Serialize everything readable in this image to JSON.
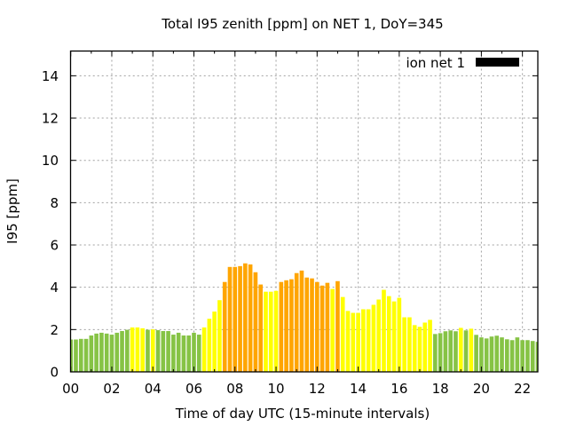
{
  "chart_data": {
    "type": "bar",
    "title": "Total I95 zenith [ppm] on NET 1, DoY=345",
    "xlabel": "Time of day UTC (15-minute intervals)",
    "ylabel": "I95 [ppm]",
    "xlim": [
      0,
      91
    ],
    "ylim": [
      0,
      15.17
    ],
    "grid": true,
    "x_ticks": [
      {
        "index": 0,
        "label": "00"
      },
      {
        "index": 8,
        "label": "02"
      },
      {
        "index": 16,
        "label": "04"
      },
      {
        "index": 24,
        "label": "06"
      },
      {
        "index": 32,
        "label": "08"
      },
      {
        "index": 40,
        "label": "10"
      },
      {
        "index": 48,
        "label": "12"
      },
      {
        "index": 56,
        "label": "14"
      },
      {
        "index": 64,
        "label": "16"
      },
      {
        "index": 72,
        "label": "18"
      },
      {
        "index": 80,
        "label": "20"
      },
      {
        "index": 88,
        "label": "22"
      }
    ],
    "y_ticks": [
      {
        "value": 0,
        "label": "0"
      },
      {
        "value": 2,
        "label": "2"
      },
      {
        "value": 4,
        "label": "4"
      },
      {
        "value": 6,
        "label": "6"
      },
      {
        "value": 8,
        "label": "8"
      },
      {
        "value": 10,
        "label": "10"
      },
      {
        "value": 12,
        "label": "12"
      },
      {
        "value": 14,
        "label": "14"
      }
    ],
    "legend": {
      "placement": "top-right",
      "entries": [
        {
          "label": "ion net 1",
          "color": "#000000"
        }
      ]
    },
    "color_thresholds": [
      {
        "below": 2,
        "color": "#86c345",
        "name": "low"
      },
      {
        "below": 4,
        "color": "#ffff00",
        "name": "medium"
      },
      {
        "below": 999,
        "color": "#ffa500",
        "name": "high"
      }
    ],
    "series": [
      {
        "name": "ion net 1",
        "x": [
          0,
          1,
          2,
          3,
          4,
          5,
          6,
          7,
          8,
          9,
          10,
          11,
          12,
          13,
          14,
          15,
          16,
          17,
          18,
          19,
          20,
          21,
          22,
          23,
          24,
          25,
          26,
          27,
          28,
          29,
          30,
          31,
          32,
          33,
          34,
          35,
          36,
          37,
          38,
          39,
          40,
          41,
          42,
          43,
          44,
          45,
          46,
          47,
          48,
          49,
          50,
          51,
          52,
          53,
          54,
          55,
          56,
          57,
          58,
          59,
          60,
          61,
          62,
          63,
          64,
          65,
          66,
          67,
          68,
          69,
          70,
          71,
          72,
          73,
          74,
          75,
          76,
          77,
          78,
          79,
          80,
          81,
          82,
          83,
          84,
          85,
          86,
          87,
          88,
          89,
          90,
          91
        ],
        "values": [
          1.53,
          1.53,
          1.56,
          1.56,
          1.72,
          1.81,
          1.85,
          1.81,
          1.76,
          1.85,
          1.93,
          1.99,
          2.1,
          2.1,
          2.06,
          1.99,
          2.01,
          1.97,
          1.93,
          1.93,
          1.76,
          1.85,
          1.72,
          1.72,
          1.85,
          1.76,
          2.1,
          2.51,
          2.85,
          3.39,
          4.25,
          4.96,
          4.96,
          5.0,
          5.13,
          5.08,
          4.71,
          4.13,
          3.79,
          3.79,
          3.83,
          4.25,
          4.33,
          4.38,
          4.67,
          4.79,
          4.46,
          4.42,
          4.25,
          4.08,
          4.21,
          3.92,
          4.29,
          3.54,
          2.88,
          2.79,
          2.79,
          2.96,
          2.96,
          3.17,
          3.42,
          3.88,
          3.58,
          3.33,
          3.5,
          2.58,
          2.58,
          2.21,
          2.13,
          2.33,
          2.46,
          1.79,
          1.83,
          1.92,
          1.96,
          1.92,
          2.08,
          1.96,
          2.04,
          1.75,
          1.63,
          1.58,
          1.67,
          1.71,
          1.63,
          1.54,
          1.5,
          1.63,
          1.5,
          1.5,
          1.46,
          1.42
        ]
      }
    ]
  }
}
